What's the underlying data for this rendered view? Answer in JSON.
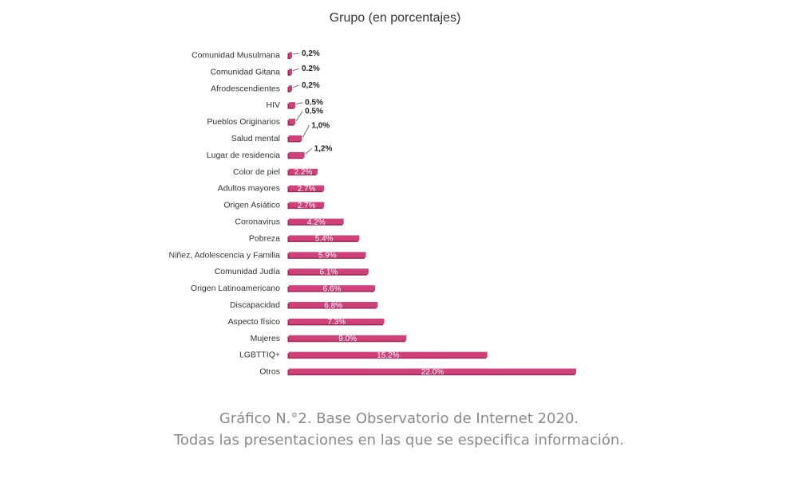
{
  "chart_data": {
    "type": "bar",
    "orientation": "horizontal",
    "title": "Grupo (en porcentajes)",
    "categories": [
      "Comunidad Musulmana",
      "Comunidad Gitana",
      "Afrodescendientes",
      "HIV",
      "Pueblos Originarios",
      "Salud mental",
      "Lugar de residencia",
      "Color de piel",
      "Adultos mayores",
      "Origen Asiático",
      "Coronavirus",
      "Pobreza",
      "Niñez, Adolescencia y Familia",
      "Comunidad Judía",
      "Origen Latinoamericano",
      "Discapacidad",
      "Aspecto físico",
      "Mujeres",
      "LGBTTIQ+",
      "Otros"
    ],
    "values": [
      0.2,
      0.2,
      0.2,
      0.5,
      0.5,
      1.0,
      1.2,
      2.2,
      2.7,
      2.7,
      4.2,
      5.4,
      5.9,
      6.1,
      6.6,
      6.8,
      7.3,
      9.0,
      15.2,
      22.0
    ],
    "value_labels": [
      "0,2%",
      "0.2%",
      "0,2%",
      "0.5%",
      "0.5%",
      "1,0%",
      "1,2%",
      "2.2%",
      "2.7%",
      "2.7%",
      "4.2%",
      "5.4%",
      "5.9%",
      "6.1%",
      "6.6%",
      "6.8%",
      "7.3%",
      "9.0%",
      "15.2%",
      "22.0%"
    ],
    "xlim": [
      0,
      22
    ],
    "grid": false,
    "legend": "none",
    "bar_color": "#d0417a",
    "bar_shadow_color": "#9c2656"
  },
  "caption": {
    "line1": "Gráfico N.°2. Base Observatorio de Internet 2020.",
    "line2": "Todas las presentaciones en las que se especifica información."
  }
}
